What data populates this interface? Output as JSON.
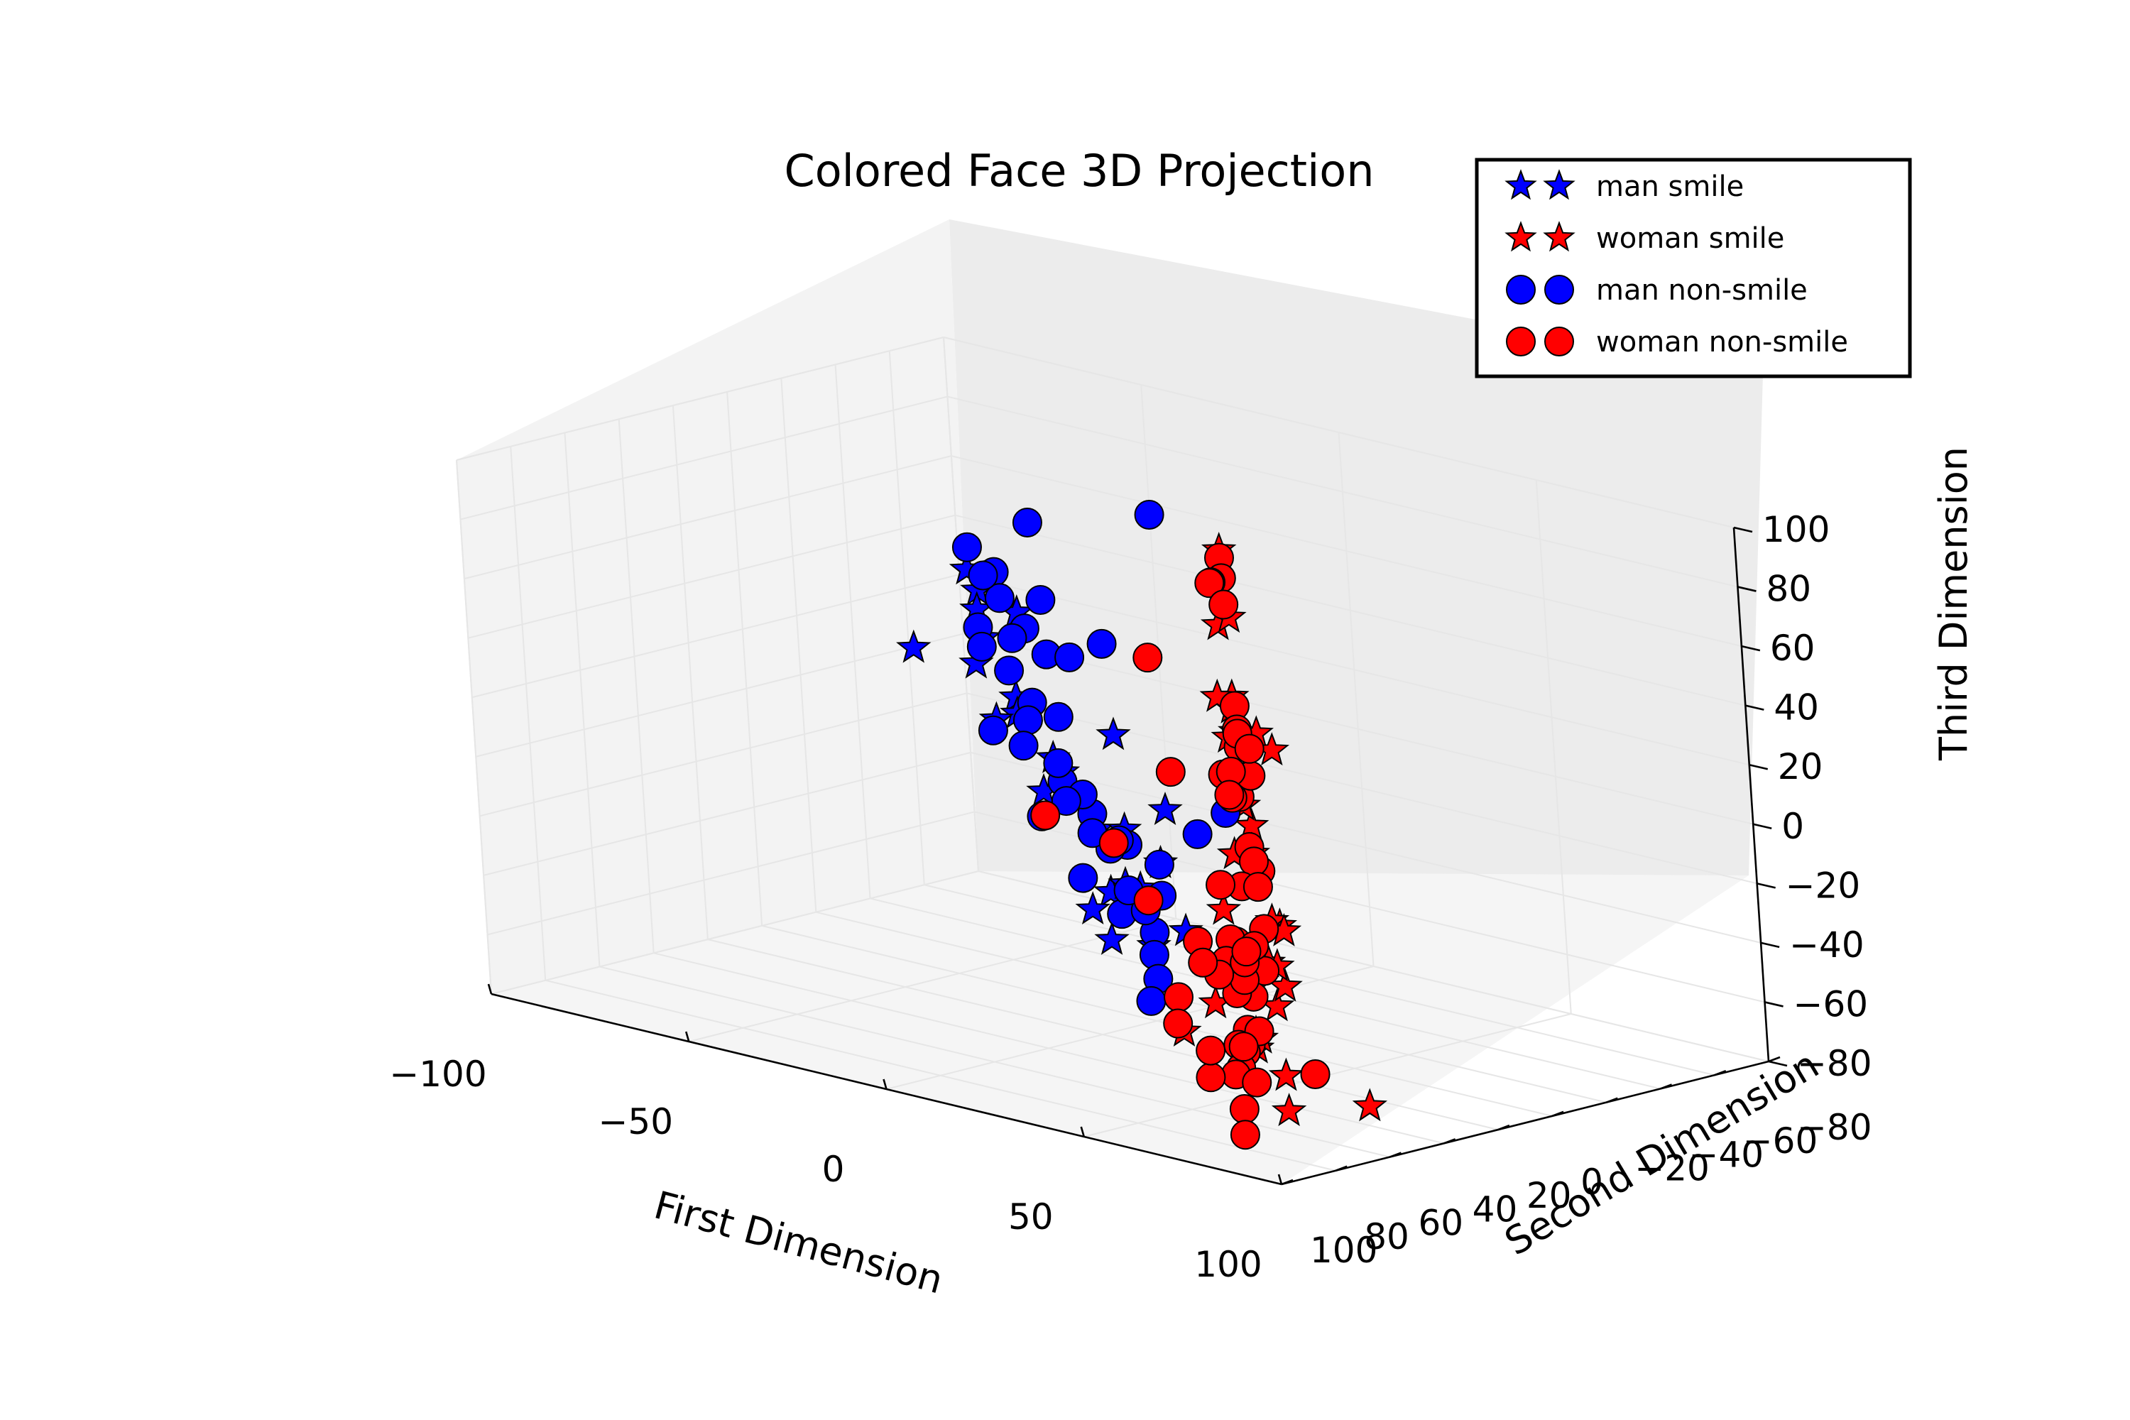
{
  "chart_data": {
    "type": "scatter",
    "title": "Colored Face 3D Projection",
    "xlabel": "First Dimension",
    "ylabel": "Second Dimension",
    "zlabel": "Third Dimension",
    "xlim": [
      -100,
      100
    ],
    "ylim": [
      -80,
      100
    ],
    "zlim": [
      -80,
      100
    ],
    "xticks": [
      "−100",
      "−50",
      "0",
      "50",
      "100"
    ],
    "yticks": [
      "−80",
      "−60",
      "−40",
      "−20",
      "0",
      "20",
      "40",
      "60",
      "80",
      "100"
    ],
    "zticks": [
      "−80",
      "−60",
      "−40",
      "−20",
      "0",
      "20",
      "40",
      "60",
      "80",
      "100"
    ],
    "grid": true,
    "legend_position": "top-right",
    "series": [
      {
        "name": "man smile",
        "marker": "star",
        "color": "#0000ff",
        "points": [
          [
            -52,
            -15,
            52
          ],
          [
            -46,
            -10,
            48
          ],
          [
            -55,
            -22,
            36
          ],
          [
            -42,
            -18,
            40
          ],
          [
            -49,
            -12,
            22
          ],
          [
            -58,
            -28,
            24
          ],
          [
            -45,
            -20,
            10
          ],
          [
            -52,
            -30,
            0
          ],
          [
            -61,
            -35,
            -6
          ],
          [
            -40,
            -25,
            -10
          ],
          [
            -47,
            -38,
            -20
          ],
          [
            -55,
            -42,
            -30
          ],
          [
            -44,
            -45,
            -40
          ],
          [
            -38,
            -40,
            -58
          ],
          [
            -50,
            -50,
            -70
          ],
          [
            -35,
            -35,
            -72
          ],
          [
            -10,
            -5,
            12
          ],
          [
            -5,
            -15,
            -14
          ],
          [
            0,
            -5,
            -28
          ],
          [
            -20,
            -20,
            -45
          ],
          [
            -42,
            -60,
            -82
          ],
          [
            -30,
            -55,
            -72
          ],
          [
            -36,
            -48,
            -58
          ],
          [
            -25,
            -28,
            -30
          ],
          [
            -62,
            -8,
            24
          ]
        ]
      },
      {
        "name": "woman smile",
        "marker": "star",
        "color": "#ff0000",
        "points": [
          [
            45,
            30,
            100
          ],
          [
            40,
            25,
            72
          ],
          [
            50,
            35,
            80
          ],
          [
            35,
            15,
            40
          ],
          [
            48,
            25,
            38
          ],
          [
            60,
            50,
            60
          ],
          [
            62,
            55,
            48
          ],
          [
            68,
            48,
            44
          ],
          [
            55,
            40,
            30
          ],
          [
            70,
            60,
            22
          ],
          [
            32,
            10,
            30
          ],
          [
            40,
            20,
            10
          ],
          [
            58,
            45,
            -5
          ],
          [
            60,
            38,
            -20
          ],
          [
            65,
            50,
            -28
          ],
          [
            70,
            55,
            -40
          ],
          [
            42,
            30,
            -40
          ],
          [
            50,
            35,
            -60
          ],
          [
            55,
            42,
            -62
          ],
          [
            35,
            12,
            -72
          ],
          [
            45,
            18,
            -80
          ],
          [
            48,
            22,
            -90
          ],
          [
            10,
            -30,
            -50
          ],
          [
            20,
            -20,
            -48
          ],
          [
            5,
            -25,
            -28
          ],
          [
            30,
            -5,
            -60
          ],
          [
            0,
            -45,
            -72
          ],
          [
            -20,
            -50,
            -92
          ],
          [
            -25,
            -45,
            -102
          ],
          [
            25,
            -40,
            -110
          ],
          [
            60,
            58,
            -10
          ],
          [
            72,
            65,
            -30
          ],
          [
            38,
            15,
            -8
          ],
          [
            52,
            44,
            56
          ]
        ]
      },
      {
        "name": "man non-smile",
        "marker": "circle",
        "color": "#0000ff",
        "points": [
          [
            -48,
            -10,
            62
          ],
          [
            -42,
            -8,
            55
          ],
          [
            -38,
            -5,
            58
          ],
          [
            -44,
            -15,
            45
          ],
          [
            -50,
            -18,
            50
          ],
          [
            -36,
            -12,
            38
          ],
          [
            -45,
            -20,
            30
          ],
          [
            -40,
            -25,
            25
          ],
          [
            -55,
            -22,
            30
          ],
          [
            -60,
            -30,
            20
          ],
          [
            -52,
            -28,
            15
          ],
          [
            -48,
            -30,
            5
          ],
          [
            -45,
            -35,
            0
          ],
          [
            -55,
            -38,
            -5
          ],
          [
            -58,
            -40,
            -15
          ],
          [
            -50,
            -42,
            -25
          ],
          [
            -45,
            -45,
            -35
          ],
          [
            -40,
            -50,
            -45
          ],
          [
            -48,
            -55,
            -50
          ],
          [
            -52,
            -50,
            -60
          ],
          [
            -44,
            -52,
            -70
          ],
          [
            -38,
            -55,
            -75
          ],
          [
            -42,
            -60,
            -85
          ],
          [
            -58,
            -45,
            -40
          ],
          [
            -62,
            -35,
            -10
          ],
          [
            -30,
            -10,
            50
          ],
          [
            -20,
            -5,
            35
          ],
          [
            -15,
            -10,
            40
          ],
          [
            -33,
            -25,
            -20
          ],
          [
            -28,
            -30,
            -35
          ],
          [
            -25,
            -40,
            -55
          ],
          [
            -35,
            -48,
            -65
          ],
          [
            -40,
            -58,
            -92
          ],
          [
            -45,
            -62,
            -102
          ],
          [
            10,
            5,
            95
          ],
          [
            -25,
            0,
            80
          ],
          [
            60,
            55,
            22
          ],
          [
            -55,
            -50,
            -35
          ],
          [
            -60,
            -55,
            -25
          ],
          [
            -46,
            -46,
            -42
          ],
          [
            -18,
            -30,
            -40
          ],
          [
            10,
            -5,
            -15
          ],
          [
            -32,
            -38,
            -55
          ]
        ]
      },
      {
        "name": "woman non-smile",
        "marker": "circle",
        "color": "#ff0000",
        "points": [
          [
            52,
            40,
            102
          ],
          [
            55,
            44,
            97
          ],
          [
            48,
            38,
            92
          ],
          [
            42,
            30,
            88
          ],
          [
            58,
            48,
            90
          ],
          [
            62,
            52,
            58
          ],
          [
            65,
            56,
            52
          ],
          [
            68,
            60,
            48
          ],
          [
            58,
            46,
            46
          ],
          [
            60,
            55,
            35
          ],
          [
            66,
            58,
            30
          ],
          [
            72,
            62,
            40
          ],
          [
            55,
            45,
            32
          ],
          [
            50,
            38,
            20
          ],
          [
            45,
            32,
            18
          ],
          [
            62,
            50,
            10
          ],
          [
            68,
            55,
            5
          ],
          [
            70,
            60,
            10
          ],
          [
            58,
            48,
            -5
          ],
          [
            65,
            52,
            -2
          ],
          [
            75,
            65,
            -10
          ],
          [
            78,
            70,
            -22
          ],
          [
            62,
            52,
            -40
          ],
          [
            55,
            48,
            -42
          ],
          [
            60,
            52,
            -35
          ],
          [
            50,
            40,
            -28
          ],
          [
            45,
            35,
            -30
          ],
          [
            40,
            30,
            -40
          ],
          [
            55,
            45,
            -55
          ],
          [
            52,
            40,
            -62
          ],
          [
            46,
            36,
            -65
          ],
          [
            40,
            25,
            -72
          ],
          [
            35,
            20,
            -80
          ],
          [
            30,
            15,
            -85
          ],
          [
            38,
            24,
            -92
          ],
          [
            42,
            30,
            -98
          ],
          [
            60,
            50,
            -70
          ],
          [
            65,
            55,
            -50
          ],
          [
            -2,
            -8,
            40
          ],
          [
            -10,
            -25,
            -5
          ],
          [
            8,
            -15,
            -35
          ],
          [
            20,
            -5,
            -55
          ],
          [
            5,
            -30,
            -60
          ],
          [
            -8,
            -35,
            -75
          ],
          [
            -20,
            -45,
            -70
          ],
          [
            -24,
            -52,
            -80
          ],
          [
            -28,
            -48,
            -92
          ],
          [
            -30,
            -50,
            -102
          ],
          [
            -26,
            -55,
            -120
          ],
          [
            -22,
            -62,
            -110
          ],
          [
            -35,
            -38,
            -40
          ],
          [
            -32,
            -45,
            -60
          ],
          [
            20,
            -28,
            -98
          ],
          [
            -55,
            -42,
            -38
          ],
          [
            10,
            -20,
            -58
          ],
          [
            58,
            42,
            40
          ],
          [
            -15,
            -40,
            -104
          ]
        ]
      }
    ]
  },
  "legend": {
    "entries": [
      {
        "label": "man smile",
        "marker": "star",
        "color": "#0000ff"
      },
      {
        "label": "woman smile",
        "marker": "star",
        "color": "#ff0000"
      },
      {
        "label": "man non-smile",
        "marker": "circle",
        "color": "#0000ff"
      },
      {
        "label": "woman non-smile",
        "marker": "circle",
        "color": "#ff0000"
      }
    ]
  }
}
